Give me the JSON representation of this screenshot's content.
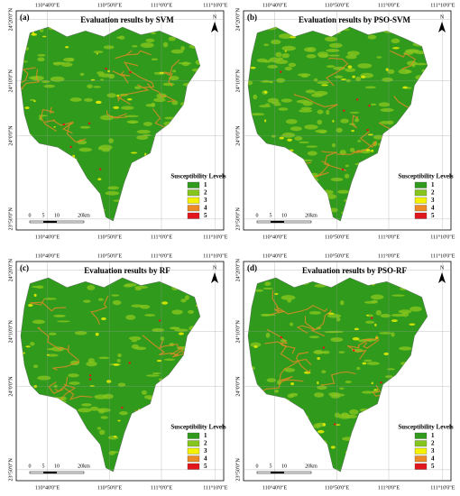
{
  "panels": [
    {
      "label": "(a)",
      "title": "Evaluation results by SVM",
      "north": "N",
      "top_lon_labels": [
        "110°40'0\"E",
        "110°50'0\"E",
        "111°0'0\"E",
        "111°10'0\"E"
      ],
      "bottom_lon_labels": [
        "110°40'0\"E",
        "110°50'0\"E",
        "111°0'0\"E",
        "111°10'0\"E"
      ],
      "lat_labels": [
        "24°20'0\"N",
        "24°10'0\"N",
        "24°0'0\"N",
        "23°50'0\"N"
      ],
      "scale_labels": [
        "0",
        "5",
        "10",
        "20km"
      ],
      "legend": {
        "title": "Susceptibility Levels",
        "items": [
          {
            "label": "1",
            "color": "#2f9a1c"
          },
          {
            "label": "2",
            "color": "#86c51e"
          },
          {
            "label": "3",
            "color": "#f4f200"
          },
          {
            "label": "4",
            "color": "#ee8a26"
          },
          {
            "label": "5",
            "color": "#e3151c"
          }
        ]
      }
    },
    {
      "label": "(b)",
      "title": "Evaluation results by PSO-SVM",
      "north": "N",
      "top_lon_labels": [
        "110°40'0\"E",
        "110°50'0\"E",
        "111°0'0\"E",
        "111°10'0\"E"
      ],
      "bottom_lon_labels": [
        "110°40'0\"E",
        "110°50'0\"E",
        "111°0'0\"E",
        "111°10'0\"E"
      ],
      "lat_labels": [
        "24°20'0\"N",
        "24°10'0\"N",
        "24°0'0\"N",
        "23°50'0\"N"
      ],
      "scale_labels": [
        "0",
        "5",
        "10",
        "20km"
      ],
      "legend": {
        "title": "Susceptibility Levels",
        "items": [
          {
            "label": "1",
            "color": "#2f9a1c"
          },
          {
            "label": "2",
            "color": "#86c51e"
          },
          {
            "label": "3",
            "color": "#f4f200"
          },
          {
            "label": "4",
            "color": "#ee8a26"
          },
          {
            "label": "5",
            "color": "#e3151c"
          }
        ]
      }
    },
    {
      "label": "(c)",
      "title": "Evaluation results by RF",
      "north": "N",
      "top_lon_labels": [
        "110°40'0\"E",
        "110°50'0\"E",
        "111°0'0\"E",
        "111°10'0\"E"
      ],
      "bottom_lon_labels": [
        "110°40'0\"E",
        "110°50'0\"E",
        "111°0'0\"E",
        "111°10'0\"E"
      ],
      "lat_labels": [
        "24°20'0\"N",
        "24°10'0\"N",
        "24°0'0\"N",
        "23°50'0\"N"
      ],
      "scale_labels": [
        "0",
        "5",
        "10",
        "20km"
      ],
      "legend": {
        "title": "Susceptibility Levels",
        "items": [
          {
            "label": "1",
            "color": "#2f9a1c"
          },
          {
            "label": "2",
            "color": "#86c51e"
          },
          {
            "label": "3",
            "color": "#f4f200"
          },
          {
            "label": "4",
            "color": "#ee8a26"
          },
          {
            "label": "5",
            "color": "#e3151c"
          }
        ]
      }
    },
    {
      "label": "(d)",
      "title": "Evaluation results by PSO-RF",
      "north": "N",
      "top_lon_labels": [
        "110°40'0\"E",
        "110°50'0\"E",
        "111°0'0\"E",
        "111°10'0\"E"
      ],
      "bottom_lon_labels": [
        "110°40'0\"E",
        "110°50'0\"E",
        "111°0'0\"E",
        "111°10'0\"E"
      ],
      "lat_labels": [
        "24°20'0\"N",
        "24°10'0\"N",
        "24°0'0\"N",
        "23°50'0\"N"
      ],
      "scale_labels": [
        "0",
        "5",
        "10",
        "20km"
      ],
      "legend": {
        "title": "Susceptibility Levels",
        "items": [
          {
            "label": "1",
            "color": "#2f9a1c"
          },
          {
            "label": "2",
            "color": "#86c51e"
          },
          {
            "label": "3",
            "color": "#f4f200"
          },
          {
            "label": "4",
            "color": "#ee8a26"
          },
          {
            "label": "5",
            "color": "#e3151c"
          }
        ]
      }
    }
  ]
}
